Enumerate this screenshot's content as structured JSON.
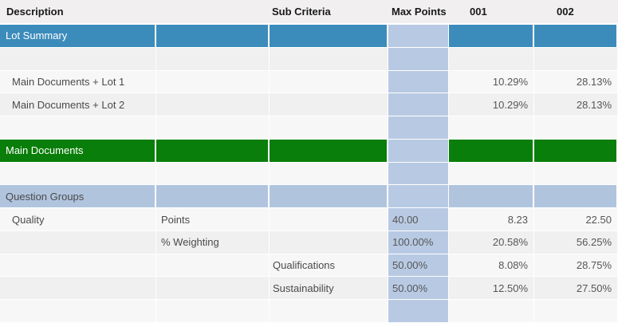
{
  "colors": {
    "section_blue": "#3c8cbb",
    "section_green": "#0a7e0a",
    "section_lightblue": "#b0c4de",
    "max_points_column": "#b8cae3",
    "stripe_light": "#f7f7f8",
    "stripe_dark": "#f0f0f1",
    "header_bg": "#f1efef",
    "label_text": "#4a4a4a",
    "value_text": "#565656",
    "section_text": "#ffffff"
  },
  "header": {
    "columns": [
      {
        "label": "Description"
      },
      {
        "label": ""
      },
      {
        "label": "Sub Criteria"
      },
      {
        "label": "Max Points"
      },
      {
        "label": "001"
      },
      {
        "label": "002"
      }
    ]
  },
  "table": {
    "rows": [
      {
        "type": "section-blue",
        "description": "Lot Summary",
        "sub_label": "",
        "sub_criteria": "",
        "max_points": "",
        "val_001": "",
        "val_002": ""
      },
      {
        "type": "empty",
        "description": "",
        "sub_label": "",
        "sub_criteria": "",
        "max_points": "",
        "val_001": "",
        "val_002": ""
      },
      {
        "type": "data",
        "description": "Main Documents + Lot 1",
        "sub_label": "",
        "sub_criteria": "",
        "max_points": "",
        "val_001": "10.29%",
        "val_002": "28.13%"
      },
      {
        "type": "data",
        "description": "Main Documents + Lot 2",
        "sub_label": "",
        "sub_criteria": "",
        "max_points": "",
        "val_001": "10.29%",
        "val_002": "28.13%"
      },
      {
        "type": "empty",
        "description": "",
        "sub_label": "",
        "sub_criteria": "",
        "max_points": "",
        "val_001": "",
        "val_002": ""
      },
      {
        "type": "section-green",
        "description": "Main Documents",
        "sub_label": "",
        "sub_criteria": "",
        "max_points": "",
        "val_001": "",
        "val_002": ""
      },
      {
        "type": "empty",
        "description": "",
        "sub_label": "",
        "sub_criteria": "",
        "max_points": "",
        "val_001": "",
        "val_002": ""
      },
      {
        "type": "section-lightblue",
        "description": "Question Groups",
        "sub_label": "",
        "sub_criteria": "",
        "max_points": "",
        "val_001": "",
        "val_002": ""
      },
      {
        "type": "data",
        "description": "Quality",
        "sub_label": "Points",
        "sub_criteria": "",
        "max_points": "40.00",
        "val_001": "8.23",
        "val_002": "22.50"
      },
      {
        "type": "data",
        "description": "",
        "sub_label": "% Weighting",
        "sub_criteria": "",
        "max_points": "100.00%",
        "val_001": "20.58%",
        "val_002": "56.25%"
      },
      {
        "type": "data",
        "description": "",
        "sub_label": "",
        "sub_criteria": "Qualifications",
        "max_points": "50.00%",
        "val_001": "8.08%",
        "val_002": "28.75%"
      },
      {
        "type": "data",
        "description": "",
        "sub_label": "",
        "sub_criteria": "Sustainability",
        "max_points": "50.00%",
        "val_001": "12.50%",
        "val_002": "27.50%"
      },
      {
        "type": "empty",
        "description": "",
        "sub_label": "",
        "sub_criteria": "",
        "max_points": "",
        "val_001": "",
        "val_002": ""
      }
    ]
  }
}
